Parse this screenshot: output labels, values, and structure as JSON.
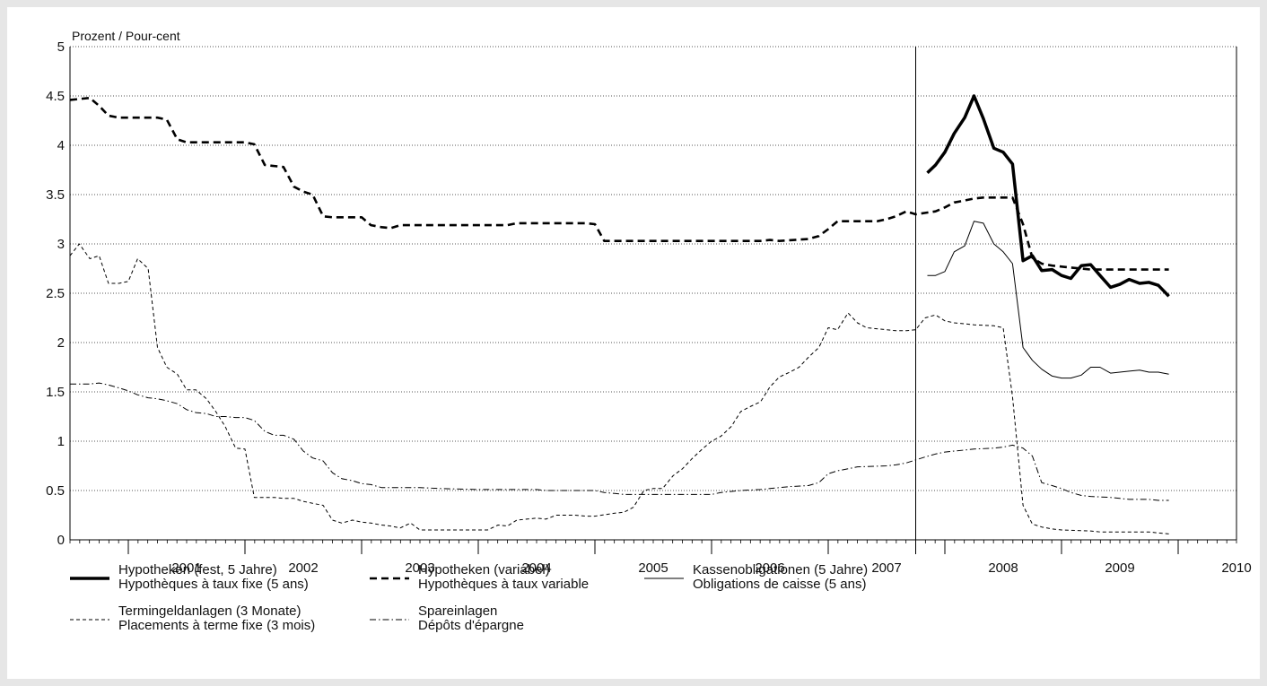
{
  "chart_data": {
    "type": "line",
    "ylabel": "Prozent / Pour-cent",
    "ylim": [
      0,
      5
    ],
    "yticks": [
      "0",
      "0.5",
      "1",
      "1.5",
      "2",
      "2.5",
      "3",
      "3.5",
      "4",
      "4.5",
      "5"
    ],
    "xticks": [
      "2001",
      "2002",
      "2003",
      "2004",
      "2005",
      "2006",
      "2007",
      "2008",
      "2009",
      "2010"
    ],
    "xlim": [
      2000.5,
      2010.5
    ],
    "grid": "horizontal dotted",
    "reference_line_x": 2007.75,
    "legend_position": "bottom",
    "series": [
      {
        "key": "fixed",
        "name": [
          "Hypotheken (fest, 5 Jahre)",
          "Hypothèques à taux fixe (5 ans)"
        ],
        "style": "bold",
        "points": [
          [
            2007.85,
            3.72
          ],
          [
            2007.92,
            3.8
          ],
          [
            2008.0,
            3.93
          ],
          [
            2008.08,
            4.12
          ],
          [
            2008.17,
            4.28
          ],
          [
            2008.25,
            4.5
          ],
          [
            2008.33,
            4.27
          ],
          [
            2008.42,
            3.97
          ],
          [
            2008.5,
            3.93
          ],
          [
            2008.58,
            3.81
          ],
          [
            2008.67,
            2.83
          ],
          [
            2008.75,
            2.88
          ],
          [
            2008.83,
            2.73
          ],
          [
            2008.92,
            2.74
          ],
          [
            2009.0,
            2.68
          ],
          [
            2009.08,
            2.65
          ],
          [
            2009.17,
            2.78
          ],
          [
            2009.25,
            2.79
          ],
          [
            2009.33,
            2.68
          ],
          [
            2009.42,
            2.56
          ],
          [
            2009.5,
            2.59
          ],
          [
            2009.58,
            2.64
          ],
          [
            2009.67,
            2.6
          ],
          [
            2009.75,
            2.61
          ],
          [
            2009.83,
            2.58
          ],
          [
            2009.92,
            2.47
          ]
        ]
      },
      {
        "key": "variable",
        "name": [
          "Hypotheken (variabel)",
          "Hypothèques à taux variable"
        ],
        "style": "dashed-bold",
        "points": [
          [
            2000.5,
            4.46
          ],
          [
            2000.67,
            4.48
          ],
          [
            2000.75,
            4.4
          ],
          [
            2000.83,
            4.3
          ],
          [
            2000.92,
            4.28
          ],
          [
            2001.0,
            4.28
          ],
          [
            2001.25,
            4.28
          ],
          [
            2001.33,
            4.26
          ],
          [
            2001.42,
            4.06
          ],
          [
            2001.5,
            4.03
          ],
          [
            2002.0,
            4.03
          ],
          [
            2002.08,
            4.01
          ],
          [
            2002.17,
            3.8
          ],
          [
            2002.33,
            3.78
          ],
          [
            2002.42,
            3.58
          ],
          [
            2002.5,
            3.53
          ],
          [
            2002.58,
            3.5
          ],
          [
            2002.67,
            3.28
          ],
          [
            2002.75,
            3.27
          ],
          [
            2003.0,
            3.27
          ],
          [
            2003.08,
            3.19
          ],
          [
            2003.17,
            3.17
          ],
          [
            2003.25,
            3.16
          ],
          [
            2003.33,
            3.19
          ],
          [
            2004.25,
            3.19
          ],
          [
            2004.33,
            3.21
          ],
          [
            2004.92,
            3.21
          ],
          [
            2005.0,
            3.2
          ],
          [
            2005.08,
            3.03
          ],
          [
            2006.42,
            3.03
          ],
          [
            2006.5,
            3.04
          ],
          [
            2006.58,
            3.03
          ],
          [
            2006.83,
            3.05
          ],
          [
            2006.92,
            3.08
          ],
          [
            2007.0,
            3.15
          ],
          [
            2007.08,
            3.23
          ],
          [
            2007.42,
            3.23
          ],
          [
            2007.5,
            3.25
          ],
          [
            2007.58,
            3.28
          ],
          [
            2007.67,
            3.33
          ],
          [
            2007.75,
            3.3
          ],
          [
            2007.92,
            3.33
          ],
          [
            2008.0,
            3.37
          ],
          [
            2008.08,
            3.42
          ],
          [
            2008.17,
            3.44
          ],
          [
            2008.25,
            3.46
          ],
          [
            2008.33,
            3.47
          ],
          [
            2008.58,
            3.47
          ],
          [
            2008.67,
            3.2
          ],
          [
            2008.75,
            2.86
          ],
          [
            2008.83,
            2.8
          ],
          [
            2008.92,
            2.78
          ],
          [
            2009.0,
            2.77
          ],
          [
            2009.08,
            2.76
          ],
          [
            2009.17,
            2.75
          ],
          [
            2009.25,
            2.74
          ],
          [
            2009.92,
            2.74
          ]
        ]
      },
      {
        "key": "kasse",
        "name": [
          "Kassenobligationen (5 Jahre)",
          "Obligations de caisse (5 ans)"
        ],
        "style": "thin",
        "points": [
          [
            2007.85,
            2.68
          ],
          [
            2007.92,
            2.68
          ],
          [
            2008.0,
            2.72
          ],
          [
            2008.08,
            2.92
          ],
          [
            2008.17,
            2.98
          ],
          [
            2008.25,
            3.23
          ],
          [
            2008.33,
            3.21
          ],
          [
            2008.42,
            3.0
          ],
          [
            2008.5,
            2.92
          ],
          [
            2008.58,
            2.8
          ],
          [
            2008.67,
            1.95
          ],
          [
            2008.75,
            1.82
          ],
          [
            2008.83,
            1.73
          ],
          [
            2008.92,
            1.66
          ],
          [
            2009.0,
            1.64
          ],
          [
            2009.08,
            1.64
          ],
          [
            2009.17,
            1.67
          ],
          [
            2009.25,
            1.75
          ],
          [
            2009.33,
            1.75
          ],
          [
            2009.42,
            1.69
          ],
          [
            2009.5,
            1.7
          ],
          [
            2009.58,
            1.71
          ],
          [
            2009.67,
            1.72
          ],
          [
            2009.75,
            1.7
          ],
          [
            2009.83,
            1.7
          ],
          [
            2009.92,
            1.68
          ]
        ]
      },
      {
        "key": "termin",
        "name": [
          "Termingeldanlagen (3 Monate)",
          "Placements à terme fixe (3 mois)"
        ],
        "style": "dashed-thin",
        "points": [
          [
            2000.5,
            2.88
          ],
          [
            2000.58,
            3.0
          ],
          [
            2000.67,
            2.85
          ],
          [
            2000.75,
            2.88
          ],
          [
            2000.83,
            2.6
          ],
          [
            2000.92,
            2.6
          ],
          [
            2001.0,
            2.62
          ],
          [
            2001.08,
            2.85
          ],
          [
            2001.17,
            2.75
          ],
          [
            2001.25,
            1.95
          ],
          [
            2001.33,
            1.75
          ],
          [
            2001.42,
            1.68
          ],
          [
            2001.5,
            1.52
          ],
          [
            2001.58,
            1.52
          ],
          [
            2001.67,
            1.43
          ],
          [
            2001.75,
            1.3
          ],
          [
            2001.83,
            1.15
          ],
          [
            2001.92,
            0.93
          ],
          [
            2002.0,
            0.92
          ],
          [
            2002.08,
            0.43
          ],
          [
            2002.17,
            0.43
          ],
          [
            2002.25,
            0.43
          ],
          [
            2002.33,
            0.42
          ],
          [
            2002.42,
            0.42
          ],
          [
            2002.5,
            0.39
          ],
          [
            2002.58,
            0.37
          ],
          [
            2002.67,
            0.35
          ],
          [
            2002.75,
            0.2
          ],
          [
            2002.83,
            0.17
          ],
          [
            2002.92,
            0.2
          ],
          [
            2003.0,
            0.18
          ],
          [
            2003.08,
            0.17
          ],
          [
            2003.17,
            0.15
          ],
          [
            2003.25,
            0.14
          ],
          [
            2003.33,
            0.12
          ],
          [
            2003.42,
            0.17
          ],
          [
            2003.5,
            0.1
          ],
          [
            2003.58,
            0.1
          ],
          [
            2004.0,
            0.1
          ],
          [
            2004.08,
            0.1
          ],
          [
            2004.17,
            0.15
          ],
          [
            2004.25,
            0.14
          ],
          [
            2004.33,
            0.2
          ],
          [
            2004.5,
            0.22
          ],
          [
            2004.58,
            0.21
          ],
          [
            2004.67,
            0.25
          ],
          [
            2004.83,
            0.25
          ],
          [
            2004.92,
            0.24
          ],
          [
            2005.0,
            0.24
          ],
          [
            2005.17,
            0.27
          ],
          [
            2005.25,
            0.28
          ],
          [
            2005.33,
            0.33
          ],
          [
            2005.42,
            0.5
          ],
          [
            2005.5,
            0.52
          ],
          [
            2005.58,
            0.52
          ],
          [
            2005.67,
            0.65
          ],
          [
            2005.75,
            0.72
          ],
          [
            2005.83,
            0.82
          ],
          [
            2005.92,
            0.92
          ],
          [
            2006.0,
            1.0
          ],
          [
            2006.08,
            1.05
          ],
          [
            2006.17,
            1.15
          ],
          [
            2006.25,
            1.3
          ],
          [
            2006.33,
            1.35
          ],
          [
            2006.42,
            1.4
          ],
          [
            2006.5,
            1.55
          ],
          [
            2006.58,
            1.65
          ],
          [
            2006.67,
            1.7
          ],
          [
            2006.75,
            1.75
          ],
          [
            2006.83,
            1.85
          ],
          [
            2006.92,
            1.95
          ],
          [
            2007.0,
            2.15
          ],
          [
            2007.08,
            2.13
          ],
          [
            2007.17,
            2.3
          ],
          [
            2007.25,
            2.2
          ],
          [
            2007.33,
            2.15
          ],
          [
            2007.5,
            2.13
          ],
          [
            2007.58,
            2.12
          ],
          [
            2007.67,
            2.12
          ],
          [
            2007.75,
            2.13
          ],
          [
            2007.83,
            2.25
          ],
          [
            2007.92,
            2.28
          ],
          [
            2008.0,
            2.22
          ],
          [
            2008.08,
            2.2
          ],
          [
            2008.17,
            2.19
          ],
          [
            2008.25,
            2.18
          ],
          [
            2008.42,
            2.17
          ],
          [
            2008.5,
            2.15
          ],
          [
            2008.58,
            1.45
          ],
          [
            2008.67,
            0.35
          ],
          [
            2008.75,
            0.16
          ],
          [
            2008.83,
            0.13
          ],
          [
            2008.92,
            0.11
          ],
          [
            2009.0,
            0.1
          ],
          [
            2009.25,
            0.09
          ],
          [
            2009.33,
            0.08
          ],
          [
            2009.75,
            0.08
          ],
          [
            2009.83,
            0.07
          ],
          [
            2009.92,
            0.06
          ]
        ]
      },
      {
        "key": "spar",
        "name": [
          "Spareinlagen",
          "Dépôts d'épargne"
        ],
        "style": "dashdot",
        "points": [
          [
            2000.5,
            1.58
          ],
          [
            2000.67,
            1.58
          ],
          [
            2000.75,
            1.59
          ],
          [
            2000.83,
            1.57
          ],
          [
            2000.92,
            1.54
          ],
          [
            2001.0,
            1.51
          ],
          [
            2001.08,
            1.47
          ],
          [
            2001.17,
            1.44
          ],
          [
            2001.25,
            1.43
          ],
          [
            2001.33,
            1.41
          ],
          [
            2001.42,
            1.38
          ],
          [
            2001.5,
            1.32
          ],
          [
            2001.58,
            1.29
          ],
          [
            2001.67,
            1.28
          ],
          [
            2001.75,
            1.25
          ],
          [
            2001.83,
            1.25
          ],
          [
            2001.92,
            1.24
          ],
          [
            2002.0,
            1.24
          ],
          [
            2002.08,
            1.21
          ],
          [
            2002.17,
            1.1
          ],
          [
            2002.25,
            1.06
          ],
          [
            2002.33,
            1.06
          ],
          [
            2002.42,
            1.02
          ],
          [
            2002.5,
            0.9
          ],
          [
            2002.58,
            0.83
          ],
          [
            2002.67,
            0.8
          ],
          [
            2002.75,
            0.68
          ],
          [
            2002.83,
            0.62
          ],
          [
            2002.92,
            0.6
          ],
          [
            2003.0,
            0.57
          ],
          [
            2003.08,
            0.56
          ],
          [
            2003.17,
            0.53
          ],
          [
            2003.5,
            0.53
          ],
          [
            2003.67,
            0.52
          ],
          [
            2004.0,
            0.51
          ],
          [
            2004.5,
            0.51
          ],
          [
            2004.58,
            0.5
          ],
          [
            2005.0,
            0.5
          ],
          [
            2005.08,
            0.48
          ],
          [
            2005.17,
            0.47
          ],
          [
            2005.25,
            0.46
          ],
          [
            2006.0,
            0.46
          ],
          [
            2006.08,
            0.48
          ],
          [
            2006.25,
            0.5
          ],
          [
            2006.42,
            0.51
          ],
          [
            2006.5,
            0.52
          ],
          [
            2006.67,
            0.54
          ],
          [
            2006.83,
            0.55
          ],
          [
            2006.92,
            0.58
          ],
          [
            2007.0,
            0.67
          ],
          [
            2007.08,
            0.7
          ],
          [
            2007.17,
            0.72
          ],
          [
            2007.25,
            0.74
          ],
          [
            2007.5,
            0.75
          ],
          [
            2007.58,
            0.76
          ],
          [
            2007.67,
            0.78
          ],
          [
            2007.75,
            0.81
          ],
          [
            2007.83,
            0.84
          ],
          [
            2007.92,
            0.87
          ],
          [
            2008.0,
            0.89
          ],
          [
            2008.08,
            0.9
          ],
          [
            2008.17,
            0.91
          ],
          [
            2008.25,
            0.92
          ],
          [
            2008.42,
            0.93
          ],
          [
            2008.5,
            0.94
          ],
          [
            2008.58,
            0.96
          ],
          [
            2008.67,
            0.93
          ],
          [
            2008.75,
            0.85
          ],
          [
            2008.83,
            0.58
          ],
          [
            2008.92,
            0.55
          ],
          [
            2009.0,
            0.52
          ],
          [
            2009.08,
            0.48
          ],
          [
            2009.17,
            0.45
          ],
          [
            2009.25,
            0.44
          ],
          [
            2009.42,
            0.43
          ],
          [
            2009.5,
            0.42
          ],
          [
            2009.58,
            0.41
          ],
          [
            2009.75,
            0.41
          ],
          [
            2009.83,
            0.4
          ],
          [
            2009.92,
            0.4
          ]
        ]
      }
    ]
  }
}
